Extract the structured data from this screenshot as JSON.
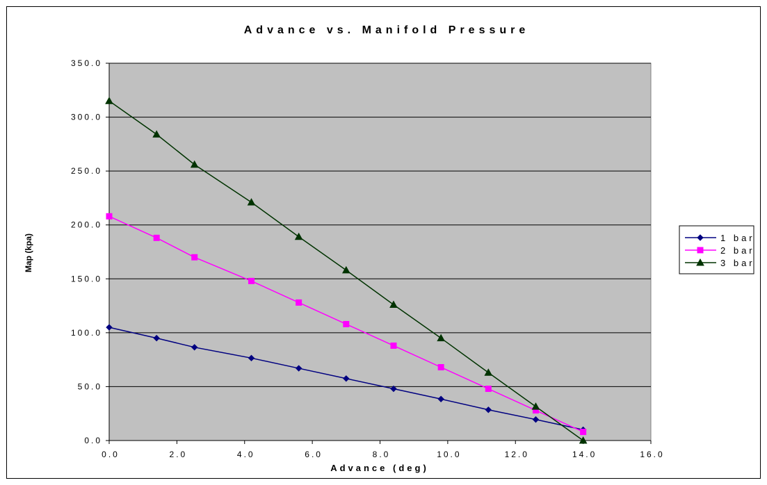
{
  "chart_data": {
    "type": "line",
    "title": "Advance vs. Manifold Pressure",
    "xlabel": "Advance (deg)",
    "ylabel": "Map (kpa)",
    "xlim": [
      0,
      16
    ],
    "ylim": [
      0,
      350
    ],
    "x_ticks": [
      0,
      2,
      4,
      6,
      8,
      10,
      12,
      14,
      16
    ],
    "y_ticks": [
      0,
      50,
      100,
      150,
      200,
      250,
      300,
      350
    ],
    "x_tick_labels": [
      "0.0",
      "2.0",
      "4.0",
      "6.0",
      "8.0",
      "10.0",
      "12.0",
      "14.0",
      "16.0"
    ],
    "y_tick_labels": [
      "0.0",
      "50.0",
      "100.0",
      "150.0",
      "200.0",
      "250.0",
      "300.0",
      "350.0"
    ],
    "grid": "horizontal",
    "legend_position": "right",
    "plot_background": "#c0c0c0",
    "x": [
      0.0,
      1.4,
      2.52,
      4.2,
      5.6,
      7.0,
      8.4,
      9.8,
      11.2,
      12.6,
      14.0
    ],
    "series": [
      {
        "name": "1 bar",
        "color": "#000080",
        "marker": "diamond",
        "values": [
          105,
          95,
          86.5,
          76.5,
          67,
          57.5,
          48,
          38.5,
          28.5,
          19.5,
          10
        ]
      },
      {
        "name": "2 bar",
        "color": "#ff00ff",
        "marker": "square",
        "values": [
          208,
          188,
          170,
          148,
          128,
          108,
          88,
          68,
          48,
          28,
          8
        ]
      },
      {
        "name": "3 bar",
        "color": "#003300",
        "marker": "triangle",
        "values": [
          315,
          284,
          256,
          221,
          189,
          158,
          126,
          95,
          63,
          31.5,
          0
        ]
      }
    ]
  }
}
